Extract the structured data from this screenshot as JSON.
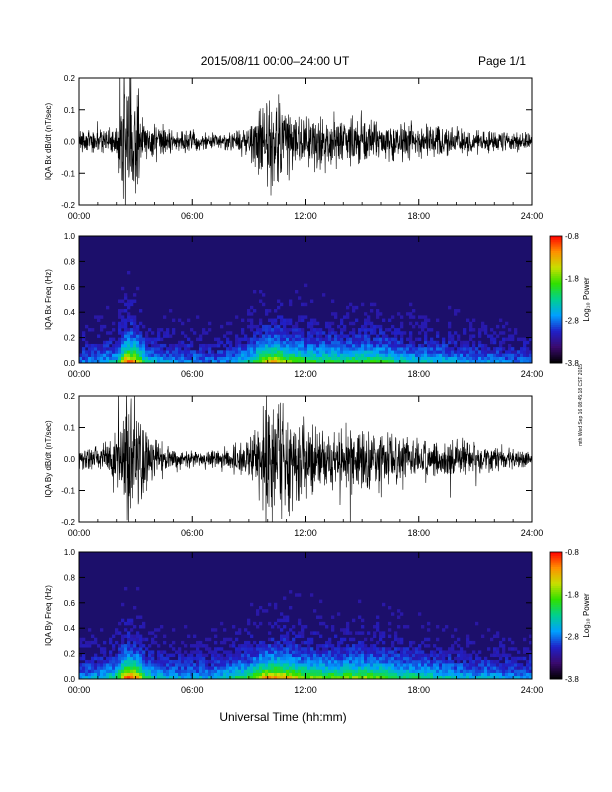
{
  "header": {
    "title": "2015/08/11  00:00–24:00 UT",
    "page": "Page 1/1"
  },
  "side_stamp": "mth Wed Sep 16 08:45:18 CST 2015",
  "xlabel": "Universal Time (hh:mm)",
  "xticks": [
    "00:00",
    "06:00",
    "12:00",
    "18:00",
    "24:00"
  ],
  "colors": {
    "trace": "#000000",
    "background": "#ffffff",
    "spectrogram_bg": "#1c0f6b"
  },
  "chart_data": [
    {
      "type": "line",
      "ylabel": "IQA Bx dB/dt (nT/sec)",
      "x_range_hours": [
        0,
        24
      ],
      "ylim": [
        -0.2,
        0.2
      ],
      "yticks": [
        "0.2",
        "0.1",
        "0.0",
        "-0.1",
        "-0.2"
      ],
      "ytick_values": [
        0.2,
        0.1,
        0.0,
        -0.1,
        -0.2
      ],
      "x_hours": [
        0,
        1,
        2,
        2.5,
        3,
        3.5,
        4,
        5,
        6,
        7,
        8,
        9,
        9.5,
        10,
        10.5,
        11,
        12,
        13,
        14,
        15,
        16,
        16.5,
        17,
        18,
        19,
        20,
        21,
        22,
        23,
        24
      ],
      "amplitude": [
        0.03,
        0.04,
        0.06,
        0.22,
        0.22,
        0.07,
        0.06,
        0.04,
        0.035,
        0.025,
        0.03,
        0.05,
        0.1,
        0.14,
        0.15,
        0.13,
        0.09,
        0.08,
        0.08,
        0.08,
        0.07,
        0.06,
        0.06,
        0.05,
        0.06,
        0.05,
        0.04,
        0.04,
        0.03,
        0.03
      ]
    },
    {
      "type": "heatmap",
      "ylabel": "IQA Bx Freq (Hz)",
      "colorbar_label": "Log₁₀ Power",
      "ylim": [
        0.0,
        1.0
      ],
      "yticks": [
        "1.0",
        "0.8",
        "0.6",
        "0.4",
        "0.2",
        "0.0"
      ],
      "ytick_values": [
        1.0,
        0.8,
        0.6,
        0.4,
        0.2,
        0.0
      ],
      "colorbar_range": [
        -3.8,
        -0.8
      ],
      "colorbar_ticks": [
        "-0.8",
        "-1.8",
        "-2.8",
        "-3.8"
      ],
      "colorbar_tick_values": [
        -0.8,
        -1.8,
        -2.8,
        -3.8
      ],
      "colormap": [
        "#000000",
        "#3a0a6e",
        "#2020c8",
        "#00a0ff",
        "#00d090",
        "#30e000",
        "#c8e000",
        "#ff9000",
        "#ff0000"
      ],
      "activity_hours": [
        0,
        1,
        2,
        2.5,
        3,
        3.5,
        4,
        5,
        6,
        7,
        8,
        9,
        9.5,
        10,
        10.5,
        11,
        12,
        13,
        14,
        15,
        16,
        16.5,
        17,
        18,
        19,
        20,
        21,
        22,
        23,
        24
      ],
      "activity_level": [
        0.25,
        0.3,
        0.4,
        1.0,
        0.9,
        0.45,
        0.35,
        0.3,
        0.3,
        0.25,
        0.3,
        0.45,
        0.65,
        0.8,
        0.85,
        0.7,
        0.6,
        0.55,
        0.55,
        0.6,
        0.55,
        0.5,
        0.45,
        0.4,
        0.4,
        0.35,
        0.3,
        0.3,
        0.25,
        0.25
      ]
    },
    {
      "type": "line",
      "ylabel": "IQA By dB/dt (nT/sec)",
      "x_range_hours": [
        0,
        24
      ],
      "ylim": [
        -0.2,
        0.2
      ],
      "yticks": [
        "0.2",
        "0.1",
        "0.0",
        "-0.1",
        "-0.2"
      ],
      "ytick_values": [
        0.2,
        0.1,
        0.0,
        -0.1,
        -0.2
      ],
      "x_hours": [
        0,
        1,
        2,
        2.5,
        3,
        3.5,
        4,
        5,
        6,
        7,
        8,
        9,
        9.5,
        10,
        10.5,
        11,
        12,
        13,
        14,
        15,
        16,
        16.5,
        17,
        18,
        19,
        20,
        21,
        22,
        23,
        24
      ],
      "amplitude": [
        0.03,
        0.04,
        0.08,
        0.22,
        0.22,
        0.12,
        0.07,
        0.04,
        0.03,
        0.03,
        0.04,
        0.07,
        0.12,
        0.2,
        0.22,
        0.2,
        0.12,
        0.1,
        0.1,
        0.11,
        0.1,
        0.09,
        0.08,
        0.07,
        0.07,
        0.06,
        0.05,
        0.04,
        0.03,
        0.03
      ]
    },
    {
      "type": "heatmap",
      "ylabel": "IQA By Freq (Hz)",
      "colorbar_label": "Log₁₀ Power",
      "ylim": [
        0.0,
        1.0
      ],
      "yticks": [
        "1.0",
        "0.8",
        "0.6",
        "0.4",
        "0.2",
        "0.0"
      ],
      "ytick_values": [
        1.0,
        0.8,
        0.6,
        0.4,
        0.2,
        0.0
      ],
      "colorbar_range": [
        -3.8,
        -0.8
      ],
      "colorbar_ticks": [
        "-0.8",
        "-1.8",
        "-2.8",
        "-3.8"
      ],
      "colorbar_tick_values": [
        -0.8,
        -1.8,
        -2.8,
        -3.8
      ],
      "colormap": [
        "#000000",
        "#3a0a6e",
        "#2020c8",
        "#00a0ff",
        "#00d090",
        "#30e000",
        "#c8e000",
        "#ff9000",
        "#ff0000"
      ],
      "activity_hours": [
        0,
        1,
        2,
        2.5,
        3,
        3.5,
        4,
        5,
        6,
        7,
        8,
        9,
        9.5,
        10,
        10.5,
        11,
        12,
        13,
        14,
        15,
        16,
        16.5,
        17,
        18,
        19,
        20,
        21,
        22,
        23,
        24
      ],
      "activity_level": [
        0.3,
        0.35,
        0.5,
        1.0,
        0.95,
        0.55,
        0.4,
        0.35,
        0.35,
        0.35,
        0.45,
        0.6,
        0.75,
        0.9,
        0.95,
        0.85,
        0.7,
        0.65,
        0.65,
        0.7,
        0.65,
        0.6,
        0.55,
        0.5,
        0.45,
        0.4,
        0.35,
        0.35,
        0.3,
        0.3
      ]
    }
  ]
}
